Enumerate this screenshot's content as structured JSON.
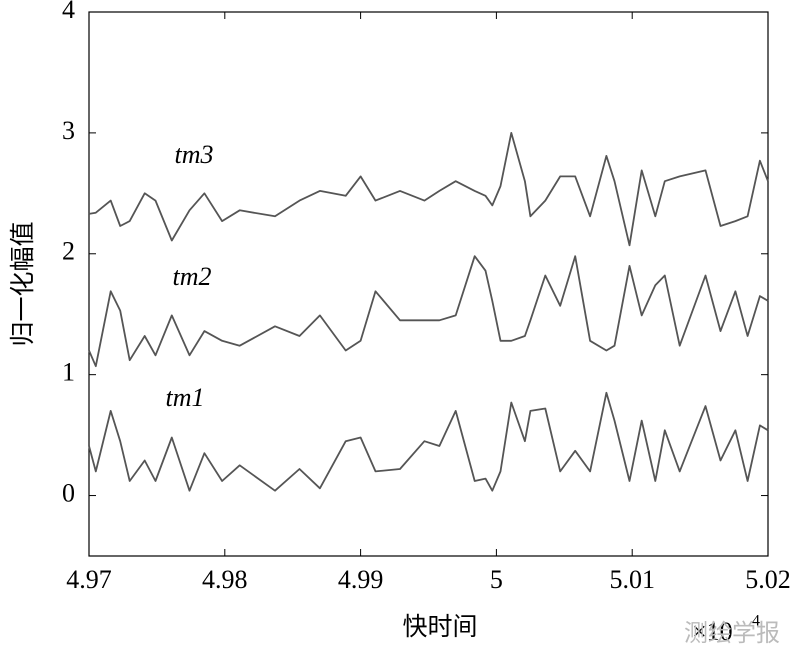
{
  "chart_data": {
    "type": "line",
    "xlabel": "快时间",
    "ylabel": "归一化幅值",
    "x_scale": {
      "base": "×10",
      "exponent": "4"
    },
    "watermark": "测绘学报",
    "x": [
      4.97,
      4.9705,
      4.9716,
      4.9723,
      4.973,
      4.9741,
      4.9749,
      4.9761,
      4.9774,
      4.9785,
      4.9798,
      4.9811,
      4.9837,
      4.9855,
      4.987,
      4.9889,
      4.99,
      4.9911,
      4.9929,
      4.9947,
      4.9958,
      4.997,
      4.9984,
      4.9992,
      4.9997,
      5.0003,
      5.0011,
      5.0021,
      5.0025,
      5.0036,
      5.0047,
      5.0058,
      5.0069,
      5.0081,
      5.0087,
      5.0098,
      5.0107,
      5.0117,
      5.0124,
      5.0135,
      5.0154,
      5.0165,
      5.0176,
      5.0185,
      5.0194,
      5.02
    ],
    "series": [
      {
        "name": "tm1",
        "color": "#555555",
        "values": [
          0.41,
          0.2,
          0.7,
          0.45,
          0.12,
          0.29,
          0.12,
          0.48,
          0.04,
          0.35,
          0.12,
          0.25,
          0.04,
          0.22,
          0.06,
          0.45,
          0.48,
          0.2,
          0.22,
          0.45,
          0.41,
          0.7,
          0.12,
          0.14,
          0.04,
          0.2,
          0.77,
          0.45,
          0.7,
          0.72,
          0.2,
          0.37,
          0.2,
          0.85,
          0.62,
          0.12,
          0.62,
          0.12,
          0.54,
          0.2,
          0.74,
          0.29,
          0.54,
          0.12,
          0.58,
          0.54
        ]
      },
      {
        "name": "tm2",
        "color": "#555555",
        "values": [
          1.2,
          1.07,
          1.69,
          1.53,
          1.12,
          1.32,
          1.16,
          1.49,
          1.16,
          1.36,
          1.28,
          1.24,
          1.4,
          1.32,
          1.49,
          1.2,
          1.28,
          1.69,
          1.45,
          1.45,
          1.45,
          1.49,
          1.98,
          1.86,
          1.61,
          1.28,
          1.28,
          1.32,
          1.45,
          1.82,
          1.57,
          1.98,
          1.28,
          1.2,
          1.24,
          1.9,
          1.49,
          1.74,
          1.82,
          1.24,
          1.82,
          1.36,
          1.69,
          1.32,
          1.65,
          1.61
        ]
      },
      {
        "name": "tm3",
        "color": "#555555",
        "values": [
          2.33,
          2.34,
          2.44,
          2.23,
          2.27,
          2.5,
          2.44,
          2.11,
          2.36,
          2.5,
          2.27,
          2.36,
          2.31,
          2.44,
          2.52,
          2.48,
          2.64,
          2.44,
          2.52,
          2.44,
          2.52,
          2.6,
          2.52,
          2.48,
          2.4,
          2.56,
          3.0,
          2.6,
          2.31,
          2.44,
          2.64,
          2.64,
          2.31,
          2.81,
          2.6,
          2.07,
          2.69,
          2.31,
          2.6,
          2.64,
          2.69,
          2.23,
          2.27,
          2.31,
          2.77,
          2.6
        ]
      }
    ],
    "xlim": [
      4.97,
      5.02
    ],
    "xticks": [
      4.97,
      4.98,
      4.99,
      5,
      5.01,
      5.02
    ],
    "ylim": [
      -0.5,
      4
    ],
    "yticks": [
      0,
      1,
      2,
      3,
      4
    ],
    "grid": false
  }
}
